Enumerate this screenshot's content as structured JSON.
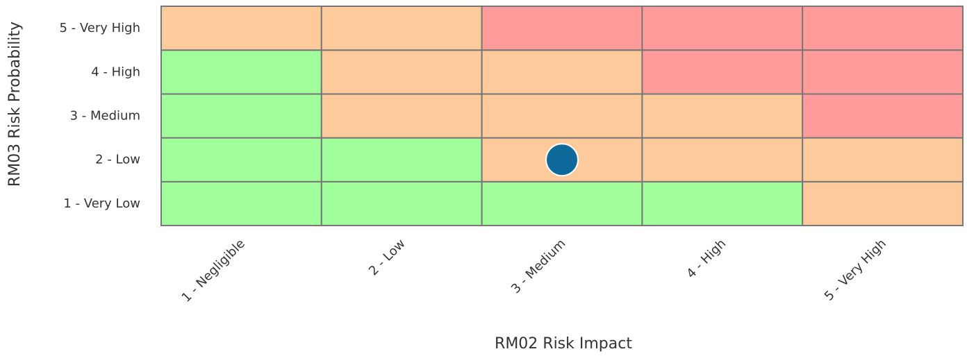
{
  "chart_data": {
    "type": "heatmap",
    "title": "",
    "xlabel": "RM02 Risk Impact",
    "ylabel": "RM03 Risk Probability",
    "x_categories": [
      "1 - Negligible",
      "2 - Low",
      "3 - Medium",
      "4 - High",
      "5 - Very High"
    ],
    "y_categories": [
      "1 - Very Low",
      "2 - Low",
      "3 - Medium",
      "4 - High",
      "5 - Very High"
    ],
    "level_colors": {
      "low": "#a0ff9a",
      "medium": "#fdcb9b",
      "high": "#ff9c9b"
    },
    "grid_levels": [
      [
        "low",
        "low",
        "low",
        "low",
        "medium"
      ],
      [
        "low",
        "low",
        "medium",
        "medium",
        "medium"
      ],
      [
        "low",
        "medium",
        "medium",
        "medium",
        "high"
      ],
      [
        "low",
        "medium",
        "medium",
        "high",
        "high"
      ],
      [
        "medium",
        "medium",
        "high",
        "high",
        "high"
      ]
    ],
    "points": [
      {
        "x": "3 - Medium",
        "y": "2 - Low",
        "color": "#0e6a9a"
      }
    ],
    "grid_line_color": "#777777",
    "legend": "none"
  }
}
